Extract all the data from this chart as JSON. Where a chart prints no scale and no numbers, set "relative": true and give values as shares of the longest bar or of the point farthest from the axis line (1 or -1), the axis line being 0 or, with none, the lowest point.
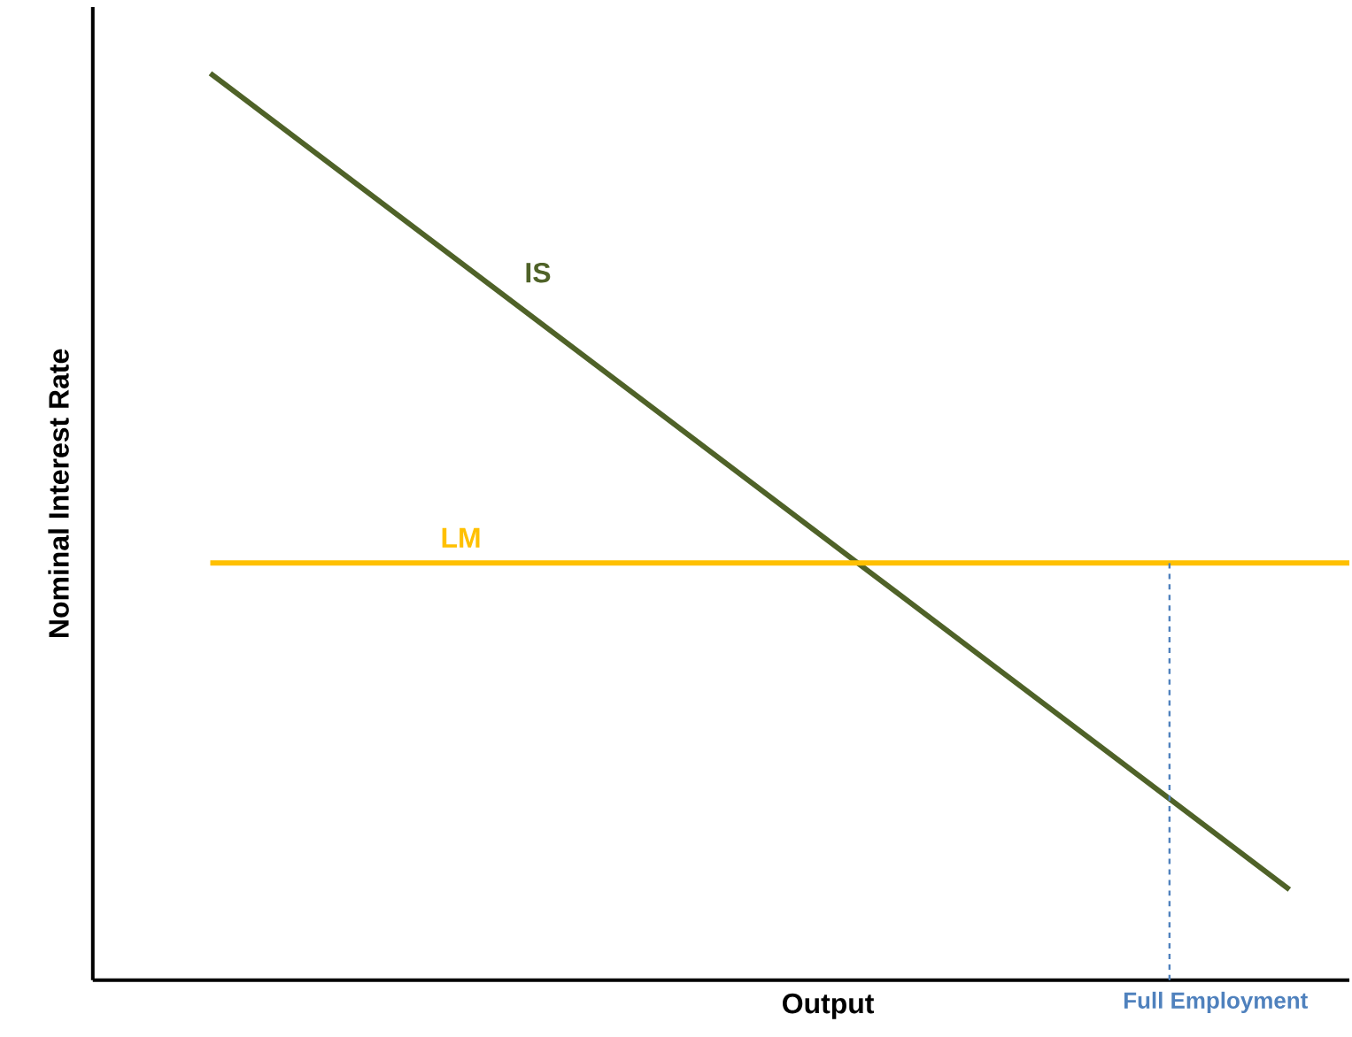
{
  "chart_data": {
    "type": "line",
    "relative": true,
    "xlabel": "Output",
    "ylabel": "Nominal Interest Rate",
    "categories": [
      null,
      null,
      null,
      null,
      null,
      null,
      null,
      null,
      null,
      null,
      null,
      null,
      null,
      null,
      null,
      null,
      null,
      null,
      null,
      null
    ],
    "series": [
      {
        "name": "IS",
        "color": "#4f6228",
        "values": [
          1,
          0.95,
          0.9,
          0.85,
          0.8,
          0.75,
          0.7,
          0.65,
          0.6,
          0.55,
          0.5,
          0.45,
          0.4,
          0.35,
          0.3,
          0.25,
          0.2,
          0.15,
          0.1,
          null
        ]
      },
      {
        "name": "LM",
        "color": "#ffc000",
        "values": [
          0.46,
          0.46,
          0.46,
          0.46,
          0.46,
          0.46,
          0.46,
          0.46,
          0.46,
          0.46,
          0.46,
          0.46,
          0.46,
          0.46,
          0.46,
          0.46,
          0.46,
          0.46,
          0.46,
          0.46
        ]
      }
    ],
    "annotations": [
      "Full Employment"
    ],
    "line_style": "solid"
  }
}
